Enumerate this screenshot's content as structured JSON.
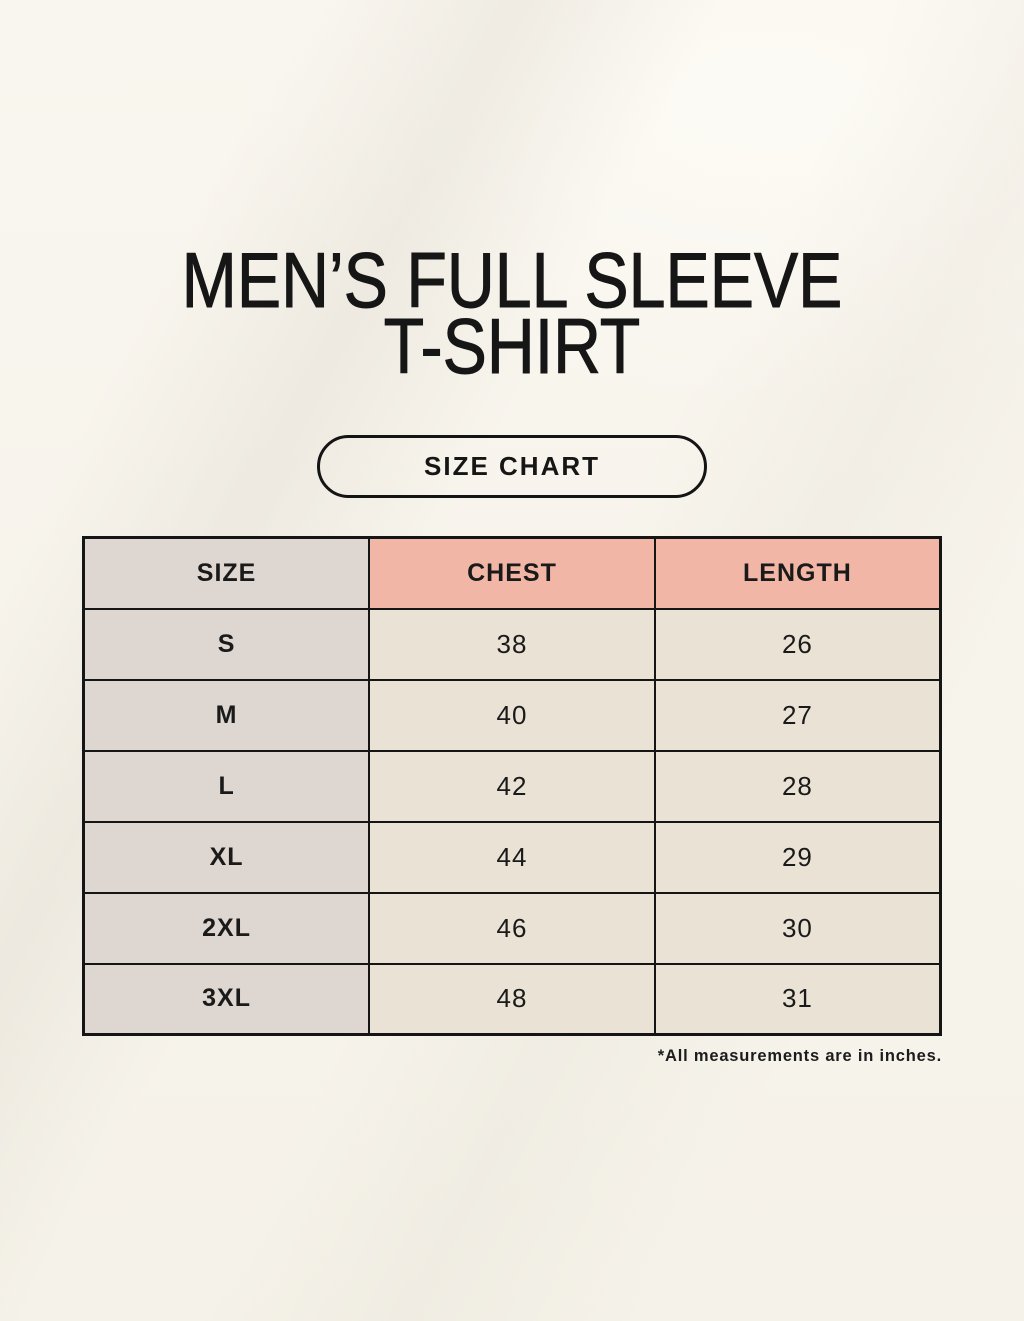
{
  "header": {
    "title_line1": "MEN’S FULL SLEEVE",
    "title_line2": "T-SHIRT",
    "badge_label": "SIZE CHART"
  },
  "table": {
    "columns": [
      "SIZE",
      "CHEST",
      "LENGTH"
    ],
    "rows": [
      [
        "S",
        "38",
        "26"
      ],
      [
        "M",
        "40",
        "27"
      ],
      [
        "L",
        "42",
        "28"
      ],
      [
        "XL",
        "44",
        "29"
      ],
      [
        "2XL",
        "46",
        "30"
      ],
      [
        "3XL",
        "48",
        "31"
      ]
    ]
  },
  "footer": {
    "note": "*All measurements are in inches."
  },
  "chart_data": {
    "type": "table",
    "title": "MEN’S FULL SLEEVE T-SHIRT — SIZE CHART",
    "columns": [
      "SIZE",
      "CHEST",
      "LENGTH"
    ],
    "rows": [
      [
        "S",
        38,
        26
      ],
      [
        "M",
        40,
        27
      ],
      [
        "L",
        42,
        28
      ],
      [
        "XL",
        44,
        29
      ],
      [
        "2XL",
        46,
        30
      ],
      [
        "3XL",
        48,
        31
      ]
    ],
    "units": "inches"
  },
  "colors": {
    "background": "#f7f4ec",
    "header_accent_pink": "#f1b6a5",
    "size_column_gray": "#ddd6d1",
    "data_cell_cream": "#e9e2d5",
    "table_border": "#151515",
    "text": "#1a1a1a"
  }
}
